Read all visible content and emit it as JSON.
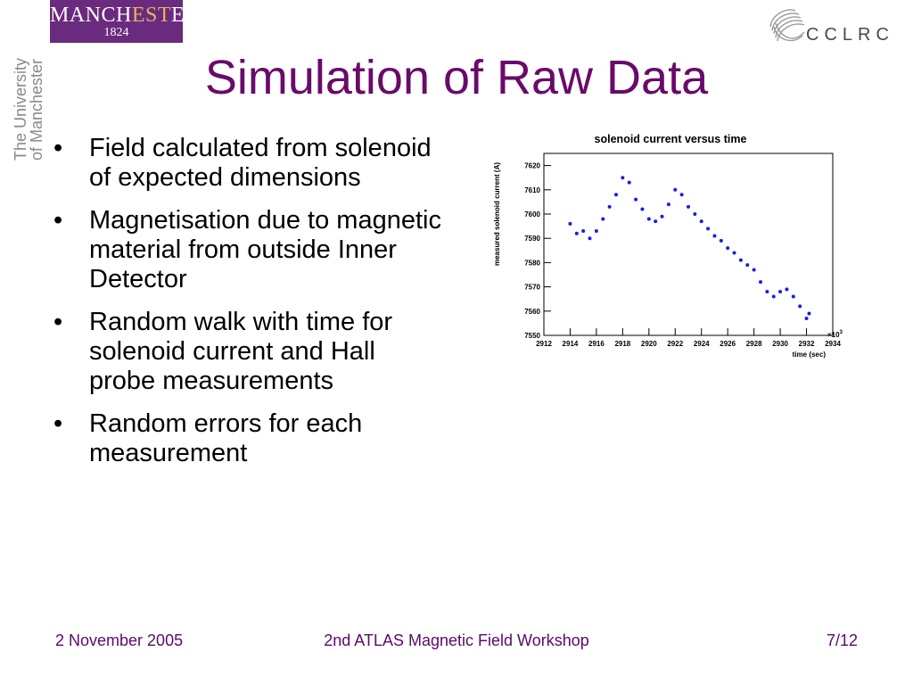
{
  "logos": {
    "manchester_wordmark_a": "MANCH",
    "manchester_wordmark_b": "EST",
    "manchester_wordmark_c": "ER",
    "manchester_year": "1824",
    "university_line1": "The University",
    "university_line2": "of Manchester",
    "cclrc": "CCLRC",
    "manchester_color": "#6a2a7e"
  },
  "slide": {
    "title": "Simulation of Raw Data",
    "title_color": "#6a0a6a",
    "bullet_glyph": "•",
    "bullets": [
      "Field calculated from solenoid of expected dimensions",
      "Magnetisation due to magnetic material from outside Inner Detector",
      "Random walk with time for solenoid current and Hall probe measurements",
      "Random errors for each measurement"
    ]
  },
  "footer": {
    "date": "2 November 2005",
    "event": "2nd ATLAS Magnetic Field Workshop",
    "page": "7/12",
    "color": "#5a0a6a"
  },
  "chart_data": {
    "type": "scatter",
    "title": "solenoid current versus time",
    "xlabel": "time (sec)",
    "ylabel": "measured solenoid current (A)",
    "x_multiplier_label": "×10",
    "x_multiplier_exp": "3",
    "xlim": [
      2912,
      2934
    ],
    "ylim": [
      7550,
      7625
    ],
    "xticks": [
      "2912",
      "2914",
      "2916",
      "2918",
      "2920",
      "2922",
      "2924",
      "2926",
      "2928",
      "2930",
      "2932",
      "2934"
    ],
    "yticks": [
      "7550",
      "7560",
      "7570",
      "7580",
      "7590",
      "7600",
      "7610",
      "7620"
    ],
    "grid": false,
    "marker_color": "#1a1aee",
    "series": [
      {
        "x": [
          2914.0,
          2914.5,
          2915.0,
          2915.5,
          2916.0,
          2916.5,
          2917.0,
          2917.5,
          2918.0,
          2918.5,
          2919.0,
          2919.5,
          2920.0,
          2920.5,
          2921.0,
          2921.5,
          2922.0,
          2922.5,
          2923.0,
          2923.5,
          2924.0,
          2924.5,
          2925.0,
          2925.5,
          2926.0,
          2926.5,
          2927.0,
          2927.5,
          2928.0,
          2928.5,
          2929.0,
          2929.5,
          2930.0,
          2930.5,
          2931.0,
          2931.5,
          2932.0,
          2932.2
        ],
        "y": [
          7596,
          7592,
          7593,
          7590,
          7593,
          7598,
          7603,
          7608,
          7615,
          7613,
          7606,
          7602,
          7598,
          7597,
          7599,
          7604,
          7610,
          7608,
          7603,
          7600,
          7597,
          7594,
          7591,
          7589,
          7586,
          7584,
          7581,
          7579,
          7577,
          7572,
          7568,
          7566,
          7568,
          7569,
          7566,
          7562,
          7557,
          7559
        ]
      }
    ]
  }
}
